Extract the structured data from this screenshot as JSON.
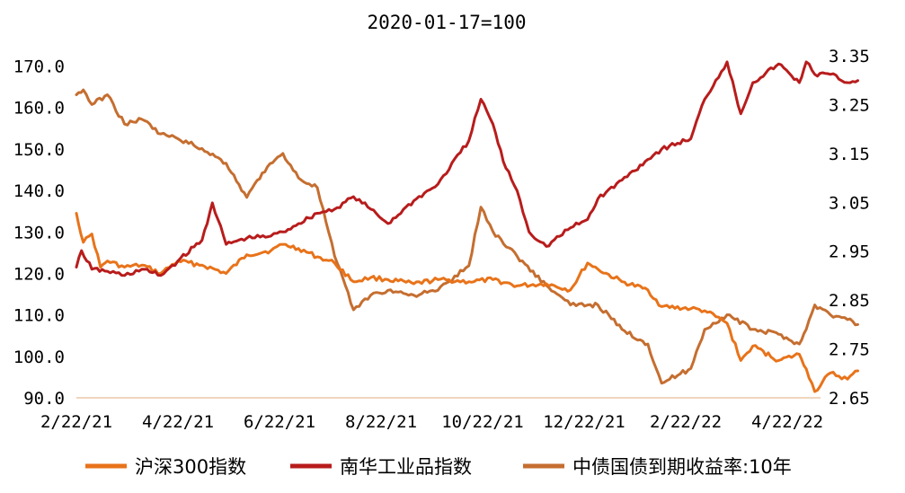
{
  "chart_data": {
    "type": "line",
    "title": "2020-01-17=100",
    "x_ticks": [
      "2/22/21",
      "4/22/21",
      "6/22/21",
      "8/22/21",
      "10/22/21",
      "12/22/21",
      "2/22/22",
      "4/22/22"
    ],
    "y_left": {
      "ticks": [
        "90.0",
        "100.0",
        "110.0",
        "120.0",
        "130.0",
        "140.0",
        "150.0",
        "160.0",
        "170.0"
      ],
      "range": [
        90,
        172.5
      ]
    },
    "y_right": {
      "ticks": [
        "2.65",
        "2.75",
        "2.85",
        "2.95",
        "3.05",
        "3.15",
        "3.25",
        "3.35"
      ],
      "range": [
        2.65,
        3.35
      ]
    },
    "legend_position": "bottom",
    "series": [
      {
        "name": "沪深300指数",
        "axis": "left",
        "color": "#E8731A",
        "points": [
          [
            "2021-02-22",
            134.5
          ],
          [
            "2021-02-26",
            127.5
          ],
          [
            "2021-03-03",
            129.5
          ],
          [
            "2021-03-08",
            121.5
          ],
          [
            "2021-03-12",
            123.0
          ],
          [
            "2021-03-22",
            121.5
          ],
          [
            "2021-04-01",
            122.0
          ],
          [
            "2021-04-12",
            120.0
          ],
          [
            "2021-04-22",
            123.0
          ],
          [
            "2021-05-06",
            122.0
          ],
          [
            "2021-05-20",
            120.0
          ],
          [
            "2021-06-01",
            124.5
          ],
          [
            "2021-06-15",
            125.5
          ],
          [
            "2021-06-22",
            127.0
          ],
          [
            "2021-07-01",
            126.0
          ],
          [
            "2021-07-12",
            124.0
          ],
          [
            "2021-07-22",
            122.5
          ],
          [
            "2021-08-02",
            118.0
          ],
          [
            "2021-08-12",
            119.0
          ],
          [
            "2021-08-22",
            118.5
          ],
          [
            "2021-09-06",
            117.5
          ],
          [
            "2021-09-20",
            118.5
          ],
          [
            "2021-10-08",
            118.0
          ],
          [
            "2021-10-22",
            118.5
          ],
          [
            "2021-11-05",
            117.0
          ],
          [
            "2021-11-22",
            117.5
          ],
          [
            "2021-12-06",
            116.0
          ],
          [
            "2021-12-16",
            122.5
          ],
          [
            "2021-12-22",
            121.0
          ],
          [
            "2022-01-05",
            118.0
          ],
          [
            "2022-01-20",
            116.0
          ],
          [
            "2022-01-28",
            112.0
          ],
          [
            "2022-02-14",
            111.5
          ],
          [
            "2022-02-22",
            111.0
          ],
          [
            "2022-03-07",
            108.0
          ],
          [
            "2022-03-15",
            99.0
          ],
          [
            "2022-03-22",
            102.5
          ],
          [
            "2022-04-06",
            99.0
          ],
          [
            "2022-04-18",
            100.5
          ],
          [
            "2022-04-22",
            97.0
          ],
          [
            "2022-04-27",
            91.5
          ],
          [
            "2022-05-06",
            96.0
          ],
          [
            "2022-05-16",
            94.5
          ],
          [
            "2022-05-22",
            96.5
          ]
        ]
      },
      {
        "name": "南华工业品指数",
        "axis": "left",
        "color": "#B81C1C",
        "points": [
          [
            "2021-02-22",
            121.5
          ],
          [
            "2021-02-25",
            125.5
          ],
          [
            "2021-03-03",
            121.0
          ],
          [
            "2021-03-12",
            120.5
          ],
          [
            "2021-03-22",
            119.5
          ],
          [
            "2021-04-01",
            121.0
          ],
          [
            "2021-04-12",
            119.5
          ],
          [
            "2021-04-22",
            123.0
          ],
          [
            "2021-05-06",
            128.0
          ],
          [
            "2021-05-12",
            137.0
          ],
          [
            "2021-05-20",
            127.0
          ],
          [
            "2021-06-01",
            128.5
          ],
          [
            "2021-06-15",
            129.0
          ],
          [
            "2021-06-22",
            130.0
          ],
          [
            "2021-07-01",
            132.0
          ],
          [
            "2021-07-12",
            134.5
          ],
          [
            "2021-07-22",
            135.5
          ],
          [
            "2021-08-02",
            138.5
          ],
          [
            "2021-08-12",
            135.5
          ],
          [
            "2021-08-22",
            132.0
          ],
          [
            "2021-09-06",
            137.5
          ],
          [
            "2021-09-20",
            141.5
          ],
          [
            "2021-10-08",
            152.0
          ],
          [
            "2021-10-15",
            162.0
          ],
          [
            "2021-10-22",
            156.0
          ],
          [
            "2021-10-28",
            147.0
          ],
          [
            "2021-11-05",
            140.0
          ],
          [
            "2021-11-12",
            130.0
          ],
          [
            "2021-11-22",
            126.5
          ],
          [
            "2021-12-06",
            131.0
          ],
          [
            "2021-12-16",
            133.0
          ],
          [
            "2021-12-22",
            138.0
          ],
          [
            "2022-01-05",
            142.5
          ],
          [
            "2022-01-20",
            147.5
          ],
          [
            "2022-01-28",
            150.0
          ],
          [
            "2022-02-14",
            152.5
          ],
          [
            "2022-02-22",
            162.0
          ],
          [
            "2022-03-07",
            171.0
          ],
          [
            "2022-03-15",
            158.5
          ],
          [
            "2022-03-22",
            166.0
          ],
          [
            "2022-04-06",
            170.5
          ],
          [
            "2022-04-18",
            166.0
          ],
          [
            "2022-04-22",
            171.0
          ],
          [
            "2022-04-27",
            168.0
          ],
          [
            "2022-05-06",
            168.0
          ],
          [
            "2022-05-16",
            166.0
          ],
          [
            "2022-05-22",
            166.5
          ]
        ]
      },
      {
        "name": "中债国债到期收益率:10年",
        "axis": "right",
        "color": "#C56E30",
        "points": [
          [
            "2021-02-22",
            3.27
          ],
          [
            "2021-02-26",
            3.28
          ],
          [
            "2021-03-03",
            3.25
          ],
          [
            "2021-03-12",
            3.27
          ],
          [
            "2021-03-22",
            3.21
          ],
          [
            "2021-04-01",
            3.22
          ],
          [
            "2021-04-12",
            3.19
          ],
          [
            "2021-04-22",
            3.18
          ],
          [
            "2021-05-06",
            3.16
          ],
          [
            "2021-05-20",
            3.13
          ],
          [
            "2021-06-01",
            3.06
          ],
          [
            "2021-06-10",
            3.11
          ],
          [
            "2021-06-22",
            3.15
          ],
          [
            "2021-07-01",
            3.1
          ],
          [
            "2021-07-12",
            3.08
          ],
          [
            "2021-07-22",
            2.94
          ],
          [
            "2021-08-02",
            2.83
          ],
          [
            "2021-08-12",
            2.86
          ],
          [
            "2021-08-22",
            2.87
          ],
          [
            "2021-09-06",
            2.86
          ],
          [
            "2021-09-20",
            2.87
          ],
          [
            "2021-10-08",
            2.92
          ],
          [
            "2021-10-15",
            3.04
          ],
          [
            "2021-10-22",
            2.99
          ],
          [
            "2021-11-05",
            2.94
          ],
          [
            "2021-11-22",
            2.88
          ],
          [
            "2021-12-06",
            2.84
          ],
          [
            "2021-12-16",
            2.84
          ],
          [
            "2021-12-22",
            2.84
          ],
          [
            "2022-01-05",
            2.79
          ],
          [
            "2022-01-20",
            2.76
          ],
          [
            "2022-01-28",
            2.68
          ],
          [
            "2022-02-14",
            2.71
          ],
          [
            "2022-02-22",
            2.79
          ],
          [
            "2022-03-07",
            2.82
          ],
          [
            "2022-03-22",
            2.79
          ],
          [
            "2022-04-06",
            2.78
          ],
          [
            "2022-04-18",
            2.76
          ],
          [
            "2022-04-22",
            2.79
          ],
          [
            "2022-04-27",
            2.84
          ],
          [
            "2022-05-06",
            2.82
          ],
          [
            "2022-05-16",
            2.81
          ],
          [
            "2022-05-22",
            2.8
          ]
        ]
      }
    ]
  }
}
